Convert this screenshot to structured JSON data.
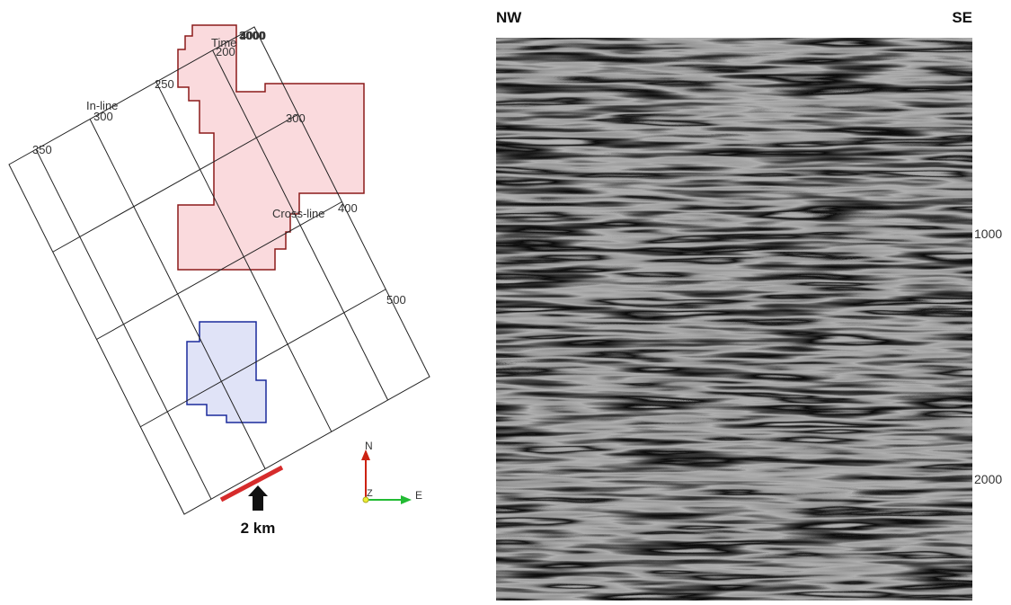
{
  "map": {
    "inline_label": "In-line",
    "crossline_label": "Cross-line",
    "time_label": "Time",
    "time_values": [
      "3000",
      "4000"
    ],
    "inline_ticks": [
      "200",
      "250",
      "300",
      "350"
    ],
    "crossline_ticks": [
      "300",
      "400",
      "500"
    ],
    "compass": {
      "north": "N",
      "east": "E",
      "z": "Z"
    },
    "scale_label": "2 km"
  },
  "seismic": {
    "left_label": "NW",
    "right_label": "SE",
    "depth_ticks": [
      "1000",
      "2000"
    ]
  }
}
